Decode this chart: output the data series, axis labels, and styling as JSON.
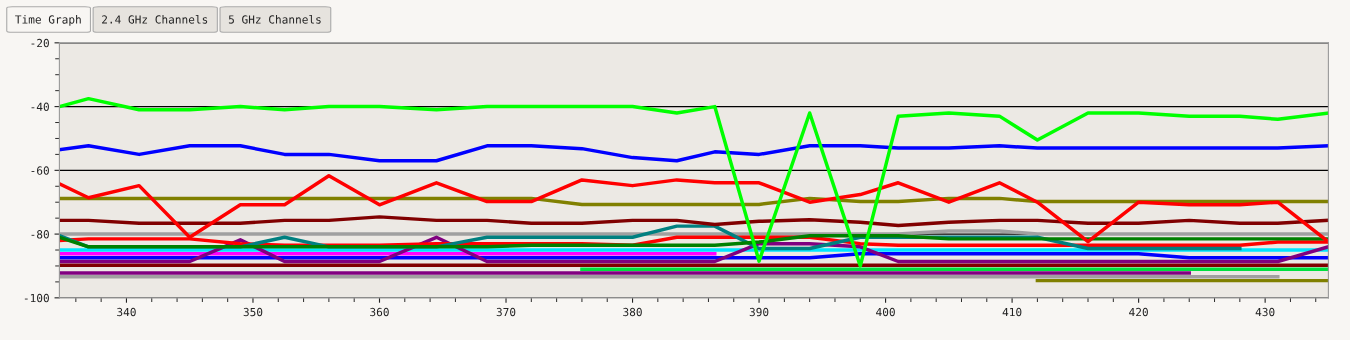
{
  "chart_data": {
    "type": "line",
    "annotations": [
      "Time Graph",
      "2.4 GHz Channels",
      "5 GHz Channels"
    ],
    "x": [
      334.7,
      337,
      341,
      345,
      349,
      352.5,
      356,
      360,
      364.5,
      368.5,
      372,
      376,
      380,
      383.5,
      386.5,
      390,
      394,
      398,
      401,
      405,
      409,
      412,
      416,
      420,
      424,
      428,
      431,
      435
    ],
    "xlim": [
      334.7,
      435
    ],
    "xticks": [
      340,
      350,
      360,
      370,
      380,
      390,
      400,
      410,
      420,
      430
    ],
    "ylim": [
      -100,
      -20
    ],
    "yticks": [
      -100,
      -80,
      -60,
      -40,
      -20
    ],
    "grid": "y",
    "marker": "none",
    "line_style": "solid",
    "series": [
      {
        "color": "#a0a0a0",
        "values": [
          -80,
          -80,
          -80,
          -80,
          -80,
          -80,
          -80,
          -80,
          -80,
          -80,
          -80,
          -80,
          -80,
          -80,
          -80,
          -80,
          -80,
          -80,
          -80,
          -79,
          -79,
          -80,
          -80,
          -80,
          -80,
          -80,
          -80,
          -80
        ]
      },
      {
        "color": "#a0a0a0",
        "values": [
          -93.4,
          -93.4,
          -93.4,
          -93.4,
          -93.4,
          -93.4,
          -93.4,
          -93.4,
          -93.4,
          -93.4,
          -93.4,
          -93.4,
          -93.4,
          -93.4,
          -93.4,
          -93.4,
          -93.4,
          -93.4,
          -93.4,
          -93.4,
          -93.4,
          -93.4,
          -93.4,
          -93.4,
          -93.4,
          -93.4,
          -93.4,
          null
        ]
      },
      {
        "color": "#808000",
        "values": [
          null,
          null,
          null,
          null,
          null,
          null,
          null,
          null,
          null,
          null,
          null,
          null,
          null,
          null,
          null,
          null,
          null,
          null,
          null,
          null,
          null,
          -94.6,
          -94.6,
          -94.6,
          -94.6,
          -94.6,
          -94.6,
          -94.6
        ]
      },
      {
        "color": "#800080",
        "values": [
          -92.2,
          -92.2,
          -92.2,
          -92.2,
          -92.2,
          -92.2,
          -92.2,
          -92.2,
          -92.2,
          -92.2,
          -92.2,
          -92.2,
          -92.2,
          -92.2,
          -92.2,
          -92.2,
          -92.2,
          -92.2,
          -92.2,
          -92.2,
          -92.2,
          -92.2,
          -92.2,
          -92.2,
          -92.2,
          null,
          null,
          null
        ]
      },
      {
        "color": "#800000",
        "values": [
          -89.8,
          -89.8,
          -89.8,
          -89.8,
          -89.8,
          -89.8,
          -89.8,
          -89.8,
          -89.8,
          -89.8,
          -89.8,
          -89.8,
          -89.8,
          -89.8,
          -89.8,
          -89.8,
          -89.8,
          -89.8,
          -89.8,
          -89.8,
          -89.8,
          -89.8,
          -89.8,
          -89.8,
          -89.8,
          -89.8,
          -89.8,
          -89.8
        ]
      },
      {
        "color": "#0000ff",
        "values": [
          -87.4,
          -87.4,
          -87.4,
          -87.4,
          -87.4,
          -87.4,
          -87.4,
          -87.4,
          -87.4,
          -87.4,
          -87.4,
          -87.4,
          -87.4,
          -87.4,
          -87.4,
          -87.4,
          -87.4,
          -86.2,
          -86.2,
          -86.2,
          -86.2,
          -86.2,
          -86.2,
          -86.2,
          -87.4,
          -87.4,
          -87.4,
          -87.4
        ]
      },
      {
        "color": "#ff00ff",
        "values": [
          -86.2,
          -86.2,
          -86.2,
          -86.2,
          -86.2,
          -86.2,
          -86.2,
          -86.2,
          -86.2,
          -86.2,
          -86.2,
          -86.2,
          -86.2,
          -86.2,
          -86.2,
          null,
          null,
          null,
          null,
          null,
          null,
          null,
          null,
          null,
          null,
          null,
          null,
          null
        ]
      },
      {
        "color": "#00e5ff",
        "values": [
          -85,
          -85,
          -85,
          -85,
          -85,
          -85,
          -85,
          -85,
          -85,
          -85,
          -85,
          -85,
          -85,
          -85,
          -85,
          -85,
          -85,
          -85,
          -85,
          -85,
          -85,
          -85,
          -85,
          -85,
          -85,
          -85,
          -85,
          -85
        ]
      },
      {
        "color": "#00e040",
        "values": [
          null,
          null,
          null,
          null,
          null,
          null,
          null,
          null,
          null,
          null,
          null,
          -91,
          -91,
          -91,
          -91,
          -91,
          -91,
          -91,
          -91,
          -91,
          -91,
          -91,
          -91,
          -91,
          -91,
          -91,
          -91,
          -91
        ]
      },
      {
        "color": "#800080",
        "values": [
          -88.6,
          -88.6,
          -88.6,
          -88.6,
          -81.8,
          -88.6,
          -88.6,
          -88.6,
          -81,
          -88.6,
          -88.6,
          -88.6,
          -88.6,
          -88.6,
          -88.6,
          -83,
          -83,
          -84,
          -88.6,
          -88.6,
          -88.6,
          -88.6,
          -88.6,
          -88.6,
          -88.6,
          -88.6,
          -88.6,
          -84
        ]
      },
      {
        "color": "#ff0000",
        "values": [
          -82,
          -81.5,
          -81.5,
          -81.5,
          -83,
          -83.5,
          -83.5,
          -83.5,
          -83,
          -83,
          -83,
          -83,
          -83.5,
          -81,
          -81,
          -81,
          -81,
          -83,
          -83.5,
          -83.5,
          -83.5,
          -83.5,
          -83.5,
          -83.5,
          -83.5,
          -83.5,
          -82.5,
          -82.5
        ]
      },
      {
        "color": "#008080",
        "values": [
          -80.5,
          -84,
          -84,
          -84,
          -84,
          -81,
          -84,
          -84,
          -84,
          -81,
          -81,
          -81,
          -81,
          -77.5,
          -77.5,
          -84.5,
          -84.5,
          -81,
          -81,
          -81,
          -81,
          -81,
          -84.5,
          -84.5,
          -84.5,
          -84.5,
          null,
          null
        ]
      },
      {
        "color": "#008000",
        "values": [
          -81,
          -84,
          -84,
          -84,
          -84,
          -84,
          -84,
          -84,
          -84,
          -84,
          -83.5,
          -83.5,
          -83.5,
          -83.5,
          -83.5,
          -82.5,
          -80.5,
          -80.5,
          -80.5,
          -81.5,
          -81.5,
          -81.5,
          -81.5,
          -81.5,
          -81.5,
          -81.5,
          -81.5,
          -81.5
        ]
      },
      {
        "color": "#800000",
        "values": [
          -75.7,
          -75.7,
          -76.6,
          -76.6,
          -76.6,
          -75.7,
          -75.7,
          -74.6,
          -75.7,
          -75.7,
          -76.6,
          -76.6,
          -75.7,
          -75.7,
          -77,
          -76,
          -75.5,
          -76.3,
          -77.3,
          -76.3,
          -75.7,
          -75.7,
          -76.6,
          -76.6,
          -75.7,
          -76.6,
          -76.6,
          -75.7
        ]
      },
      {
        "color": "#808000",
        "values": [
          -68.8,
          -68.8,
          -68.8,
          -68.8,
          -68.8,
          -68.8,
          -68.8,
          -68.8,
          -68.8,
          -68.8,
          -68.8,
          -70.7,
          -70.7,
          -70.7,
          -70.7,
          -70.7,
          -68.8,
          -69.8,
          -69.8,
          -68.8,
          -68.8,
          -69.8,
          -69.8,
          -69.8,
          -69.8,
          -69.8,
          -69.8,
          -69.8
        ]
      },
      {
        "color": "#ff0000",
        "values": [
          -64.2,
          -68.6,
          -64.8,
          -81,
          -70.8,
          -70.8,
          -61.7,
          -70.8,
          -63.9,
          -69.8,
          -69.8,
          -63,
          -64.8,
          -63,
          -63.9,
          -63.9,
          -70,
          -67.6,
          -63.9,
          -70,
          -63.9,
          -70,
          -82.4,
          -70,
          -70.8,
          -70.8,
          -70,
          -82.4
        ]
      },
      {
        "color": "#0000ff",
        "values": [
          -53.5,
          -52.3,
          -55,
          -52.3,
          -52.3,
          -55,
          -55,
          -57,
          -57,
          -52.3,
          -52.3,
          -53.2,
          -56,
          -57,
          -54.2,
          -55,
          -52.3,
          -52.3,
          -53,
          -53,
          -52.3,
          -53,
          -53,
          -53,
          -53,
          -53,
          -53,
          -52.3
        ]
      },
      {
        "color": "#00ff00",
        "values": [
          -40,
          -37.5,
          -41,
          -41,
          -40,
          -41,
          -40,
          -40,
          -41,
          -40,
          -40,
          -40,
          -40,
          -42,
          -40,
          -88.5,
          -42,
          -90,
          -43,
          -42,
          -43,
          -50.5,
          -42,
          -42,
          -43,
          -43,
          -44,
          -42
        ]
      }
    ]
  }
}
